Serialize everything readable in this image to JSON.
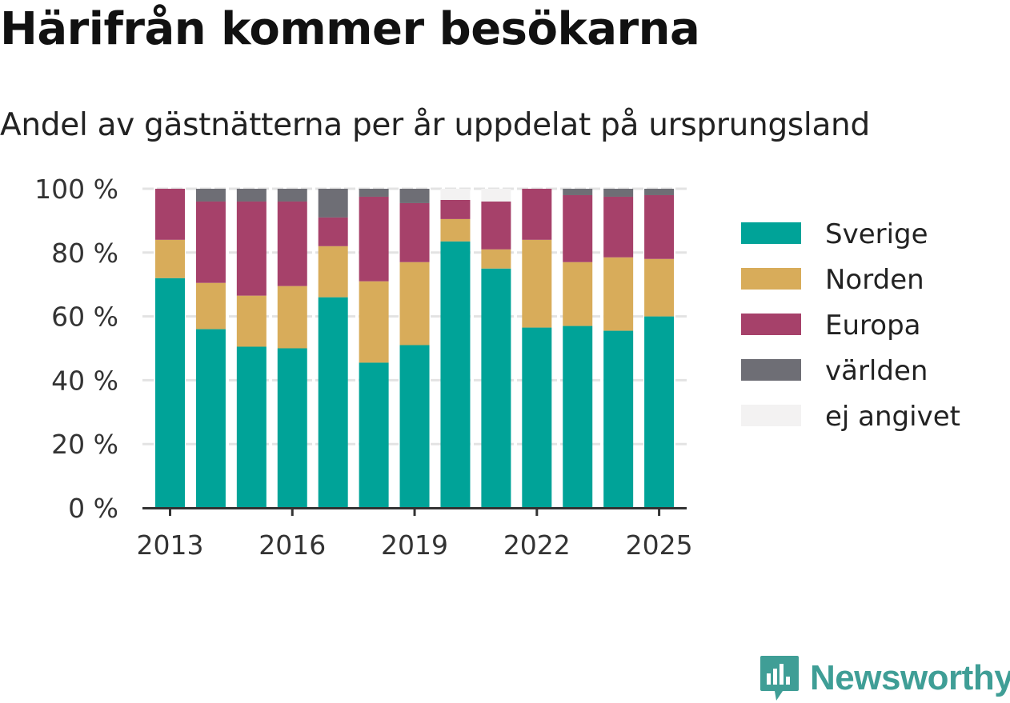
{
  "brand": {
    "name": "Newsworthy"
  },
  "chart_data": {
    "type": "bar",
    "stacked": true,
    "title": "Härifrån kommer besökarna",
    "subtitle": "Andel av gästnätterna per år uppdelat på ursprungsland",
    "categories": [
      "2013",
      "2014",
      "2015",
      "2016",
      "2017",
      "2018",
      "2019",
      "2020",
      "2021",
      "2022",
      "2023",
      "2024",
      "2025"
    ],
    "x_tick_labels": [
      "2013",
      "2016",
      "2019",
      "2022",
      "2025"
    ],
    "y_tick_labels": [
      "0 %",
      "20 %",
      "40 %",
      "60 %",
      "80 %",
      "100 %"
    ],
    "ylim": [
      0,
      100
    ],
    "grid": true,
    "legend_position": "right",
    "series": [
      {
        "name": "Sverige",
        "color": "#00a398",
        "values": [
          72,
          56,
          50.5,
          50,
          66,
          45.5,
          51,
          83.5,
          75,
          56.5,
          57,
          55.5,
          60
        ]
      },
      {
        "name": "Norden",
        "color": "#d8ac5a",
        "values": [
          12,
          14.5,
          16,
          19.5,
          16,
          25.5,
          26,
          7,
          6,
          27.5,
          20,
          23,
          18
        ]
      },
      {
        "name": "Europa",
        "color": "#a6416a",
        "values": [
          16,
          25.5,
          29.5,
          26.5,
          9,
          26.5,
          18.5,
          6,
          15,
          16,
          21,
          19,
          20
        ]
      },
      {
        "name": "världen",
        "color": "#6e6e75",
        "values": [
          0,
          4,
          4,
          4,
          9,
          2.5,
          4.5,
          0,
          0,
          0,
          2,
          2.5,
          2
        ]
      },
      {
        "name": "ej angivet",
        "color": "#f3f2f2",
        "values": [
          0,
          0,
          0,
          0,
          0,
          0,
          0,
          3.5,
          4,
          0,
          0,
          0,
          0
        ]
      }
    ]
  }
}
